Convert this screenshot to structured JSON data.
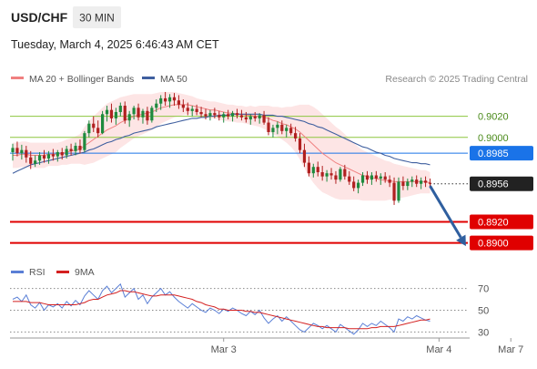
{
  "header": {
    "symbol": "USD/CHF",
    "timeframe": "30 MIN",
    "datetime": "Tuesday, March 4, 2025 6:46:43 AM CET"
  },
  "legend": {
    "ma20_label": "MA 20 + Bollinger Bands",
    "ma50_label": "MA 50",
    "credit": "Research © 2025 Trading Central"
  },
  "rsi_legend": {
    "rsi_label": "RSI",
    "ma_label": "9MA"
  },
  "colors": {
    "up_candle": "#1e8a3e",
    "down_candle": "#b02020",
    "ma20": "#f08080",
    "bollinger_fill": "#fde2e2",
    "ma50": "#3f5f9f",
    "resistance": "#8dc63f",
    "pivot": "#1a73e8",
    "support": "#e00000",
    "rsi": "#5a7fd6",
    "rsi_ma": "#d42020",
    "arrow": "#2f5f9f"
  },
  "chart_data": [
    {
      "type": "candlestick",
      "title": "USD/CHF 30 MIN",
      "ylim": [
        0.8885,
        0.9068
      ],
      "x_ticks": [
        {
          "label": "Mar 3",
          "index": 47
        },
        {
          "label": "Mar 4",
          "index": 95
        },
        {
          "label": "Mar 7",
          "index": 111
        }
      ],
      "candles": [
        [
          0.8986,
          0.8994,
          0.8978,
          0.899
        ],
        [
          0.899,
          0.8996,
          0.8982,
          0.8985
        ],
        [
          0.8985,
          0.8993,
          0.8979,
          0.8988
        ],
        [
          0.8988,
          0.8992,
          0.8976,
          0.8981
        ],
        [
          0.8981,
          0.8987,
          0.897,
          0.8975
        ],
        [
          0.8975,
          0.8983,
          0.8972,
          0.8978
        ],
        [
          0.8978,
          0.8986,
          0.8974,
          0.8983
        ],
        [
          0.8983,
          0.8988,
          0.8976,
          0.898
        ],
        [
          0.898,
          0.8987,
          0.8975,
          0.8984
        ],
        [
          0.8984,
          0.8989,
          0.8978,
          0.8982
        ],
        [
          0.8982,
          0.8988,
          0.8977,
          0.8986
        ],
        [
          0.8986,
          0.899,
          0.8979,
          0.8983
        ],
        [
          0.8983,
          0.8992,
          0.898,
          0.8989
        ],
        [
          0.8989,
          0.8994,
          0.8983,
          0.8987
        ],
        [
          0.8987,
          0.8995,
          0.8983,
          0.8992
        ],
        [
          0.8992,
          0.8998,
          0.8985,
          0.8988
        ],
        [
          0.8988,
          0.9006,
          0.8986,
          0.9004
        ],
        [
          0.9004,
          0.9016,
          0.9,
          0.9013
        ],
        [
          0.9013,
          0.902,
          0.9005,
          0.9009
        ],
        [
          0.9009,
          0.9016,
          0.9,
          0.9004
        ],
        [
          0.9004,
          0.9025,
          0.9003,
          0.9022
        ],
        [
          0.9022,
          0.903,
          0.9015,
          0.9026
        ],
        [
          0.9026,
          0.9032,
          0.9014,
          0.9018
        ],
        [
          0.9018,
          0.9028,
          0.9012,
          0.9024
        ],
        [
          0.9024,
          0.9033,
          0.902,
          0.903
        ],
        [
          0.903,
          0.9034,
          0.9013,
          0.9016
        ],
        [
          0.9016,
          0.9025,
          0.901,
          0.9022
        ],
        [
          0.9022,
          0.903,
          0.9017,
          0.9028
        ],
        [
          0.9028,
          0.9032,
          0.9016,
          0.9019
        ],
        [
          0.9019,
          0.9027,
          0.9013,
          0.9025
        ],
        [
          0.9025,
          0.9029,
          0.9012,
          0.9016
        ],
        [
          0.9016,
          0.903,
          0.9014,
          0.9028
        ],
        [
          0.9028,
          0.9036,
          0.9024,
          0.9032
        ],
        [
          0.9032,
          0.904,
          0.9026,
          0.9037
        ],
        [
          0.9037,
          0.9043,
          0.903,
          0.9034
        ],
        [
          0.9034,
          0.9041,
          0.9028,
          0.9038
        ],
        [
          0.9038,
          0.9042,
          0.903,
          0.9035
        ],
        [
          0.9035,
          0.904,
          0.9027,
          0.9031
        ],
        [
          0.9031,
          0.9036,
          0.9024,
          0.9028
        ],
        [
          0.9028,
          0.9033,
          0.9021,
          0.9025
        ],
        [
          0.9025,
          0.903,
          0.902,
          0.9027
        ],
        [
          0.9027,
          0.9031,
          0.9021,
          0.9024
        ],
        [
          0.9024,
          0.9029,
          0.9019,
          0.9022
        ],
        [
          0.9022,
          0.9027,
          0.9017,
          0.902
        ],
        [
          0.902,
          0.9026,
          0.9016,
          0.9023
        ],
        [
          0.9023,
          0.9028,
          0.9018,
          0.9021
        ],
        [
          0.9021,
          0.9025,
          0.9016,
          0.9019
        ],
        [
          0.9019,
          0.9024,
          0.9014,
          0.9022
        ],
        [
          0.9022,
          0.9026,
          0.9017,
          0.902
        ],
        [
          0.902,
          0.9025,
          0.9015,
          0.9023
        ],
        [
          0.9023,
          0.9027,
          0.9018,
          0.9021
        ],
        [
          0.9021,
          0.9026,
          0.9016,
          0.9019
        ],
        [
          0.9019,
          0.9024,
          0.9014,
          0.9017
        ],
        [
          0.9017,
          0.9022,
          0.9012,
          0.902
        ],
        [
          0.902,
          0.9024,
          0.9015,
          0.9018
        ],
        [
          0.9018,
          0.9023,
          0.9013,
          0.9021
        ],
        [
          0.9021,
          0.9025,
          0.9012,
          0.9014
        ],
        [
          0.9014,
          0.9019,
          0.9002,
          0.9005
        ],
        [
          0.9005,
          0.9012,
          0.9,
          0.9009
        ],
        [
          0.9009,
          0.9015,
          0.9003,
          0.9012
        ],
        [
          0.9012,
          0.9016,
          0.9003,
          0.9006
        ],
        [
          0.9006,
          0.9012,
          0.9,
          0.9009
        ],
        [
          0.9009,
          0.9013,
          0.9002,
          0.9004
        ],
        [
          0.9004,
          0.901,
          0.8996,
          0.8999
        ],
        [
          0.8999,
          0.9004,
          0.8985,
          0.8988
        ],
        [
          0.8988,
          0.8994,
          0.8972,
          0.8976
        ],
        [
          0.8976,
          0.8982,
          0.8963,
          0.8966
        ],
        [
          0.8966,
          0.8975,
          0.8962,
          0.8972
        ],
        [
          0.8972,
          0.8977,
          0.8963,
          0.8967
        ],
        [
          0.8967,
          0.8973,
          0.8959,
          0.8963
        ],
        [
          0.8963,
          0.8969,
          0.8958,
          0.8966
        ],
        [
          0.8966,
          0.8971,
          0.896,
          0.8964
        ],
        [
          0.8964,
          0.8968,
          0.8956,
          0.896
        ],
        [
          0.896,
          0.8972,
          0.8958,
          0.897
        ],
        [
          0.897,
          0.8974,
          0.896,
          0.8963
        ],
        [
          0.8963,
          0.8968,
          0.8955,
          0.8958
        ],
        [
          0.8958,
          0.8963,
          0.8949,
          0.8952
        ],
        [
          0.8952,
          0.896,
          0.8947,
          0.8957
        ],
        [
          0.8957,
          0.8967,
          0.8954,
          0.8964
        ],
        [
          0.8964,
          0.8968,
          0.8956,
          0.896
        ],
        [
          0.896,
          0.8967,
          0.8955,
          0.8964
        ],
        [
          0.8964,
          0.8968,
          0.8958,
          0.8961
        ],
        [
          0.8961,
          0.8966,
          0.8955,
          0.8963
        ],
        [
          0.8963,
          0.8967,
          0.8957,
          0.896
        ],
        [
          0.896,
          0.8964,
          0.8953,
          0.8957
        ],
        [
          0.8957,
          0.8962,
          0.8936,
          0.894
        ],
        [
          0.894,
          0.8962,
          0.8938,
          0.8958
        ],
        [
          0.8958,
          0.8963,
          0.895,
          0.8954
        ],
        [
          0.8954,
          0.8961,
          0.895,
          0.8958
        ],
        [
          0.8958,
          0.8963,
          0.8953,
          0.896
        ],
        [
          0.896,
          0.8964,
          0.8953,
          0.8956
        ],
        [
          0.8956,
          0.8962,
          0.8951,
          0.8959
        ],
        [
          0.8959,
          0.8963,
          0.8953,
          0.8957
        ],
        [
          0.8957,
          0.8961,
          0.8952,
          0.8956
        ]
      ],
      "ma20": [
        0.8983,
        0.8983,
        0.8984,
        0.8984,
        0.8983,
        0.8983,
        0.8983,
        0.8983,
        0.8984,
        0.8984,
        0.8984,
        0.8985,
        0.8986,
        0.8987,
        0.8988,
        0.8989,
        0.8992,
        0.8995,
        0.8998,
        0.9001,
        0.9004,
        0.9007,
        0.9009,
        0.9011,
        0.9014,
        0.9016,
        0.9018,
        0.902,
        0.9021,
        0.9022,
        0.9023,
        0.9024,
        0.9026,
        0.9028,
        0.9029,
        0.903,
        0.9031,
        0.9031,
        0.9031,
        0.9031,
        0.903,
        0.9029,
        0.9028,
        0.9027,
        0.9026,
        0.9026,
        0.9025,
        0.9024,
        0.9023,
        0.9023,
        0.9022,
        0.9022,
        0.9021,
        0.9021,
        0.902,
        0.902,
        0.9019,
        0.9018,
        0.9016,
        0.9015,
        0.9013,
        0.9012,
        0.901,
        0.9008,
        0.9005,
        0.9001,
        0.8997,
        0.8993,
        0.8989,
        0.8985,
        0.8982,
        0.8979,
        0.8976,
        0.8974,
        0.8972,
        0.897,
        0.8968,
        0.8966,
        0.8964,
        0.8963,
        0.8962,
        0.8961,
        0.896,
        0.8959,
        0.8959,
        0.8958,
        0.8958,
        0.8958,
        0.8958,
        0.8958,
        0.8958,
        0.8958,
        0.8958,
        0.8957
      ],
      "bb_width": [
        0.0012,
        0.0012,
        0.0012,
        0.0012,
        0.0012,
        0.0012,
        0.0012,
        0.0012,
        0.0011,
        0.0011,
        0.0011,
        0.0011,
        0.0012,
        0.0012,
        0.0013,
        0.0014,
        0.0018,
        0.002,
        0.0022,
        0.0023,
        0.0024,
        0.0025,
        0.0025,
        0.0025,
        0.0024,
        0.0023,
        0.0022,
        0.0021,
        0.002,
        0.0019,
        0.0018,
        0.0017,
        0.0016,
        0.0015,
        0.0014,
        0.0013,
        0.0012,
        0.0011,
        0.001,
        0.0009,
        0.0009,
        0.0008,
        0.0008,
        0.0008,
        0.0008,
        0.0008,
        0.0008,
        0.0008,
        0.0008,
        0.0008,
        0.0008,
        0.0008,
        0.0008,
        0.0009,
        0.0009,
        0.001,
        0.0011,
        0.0012,
        0.0013,
        0.0014,
        0.0015,
        0.0017,
        0.0019,
        0.0022,
        0.0026,
        0.003,
        0.0034,
        0.0036,
        0.0037,
        0.0037,
        0.0036,
        0.0035,
        0.0034,
        0.0033,
        0.0031,
        0.0029,
        0.0027,
        0.0025,
        0.0024,
        0.0023,
        0.0022,
        0.0021,
        0.002,
        0.0019,
        0.0018,
        0.0017,
        0.0016,
        0.0015,
        0.0014,
        0.0013,
        0.0012,
        0.0011,
        0.0011,
        0.001
      ],
      "ma50": [
        0.8966,
        0.8968,
        0.897,
        0.8972,
        0.8974,
        0.8975,
        0.8976,
        0.8977,
        0.8978,
        0.8979,
        0.898,
        0.8981,
        0.8982,
        0.8983,
        0.8984,
        0.8985,
        0.8986,
        0.8988,
        0.8989,
        0.8991,
        0.8993,
        0.8995,
        0.8996,
        0.8998,
        0.8999,
        0.9001,
        0.9002,
        0.9004,
        0.9005,
        0.9006,
        0.9007,
        0.9008,
        0.901,
        0.9011,
        0.9012,
        0.9013,
        0.9014,
        0.9015,
        0.9016,
        0.9017,
        0.9018,
        0.9018,
        0.9019,
        0.9019,
        0.902,
        0.902,
        0.9021,
        0.9021,
        0.9021,
        0.9022,
        0.9022,
        0.9022,
        0.9022,
        0.9022,
        0.9022,
        0.9022,
        0.9021,
        0.9021,
        0.9021,
        0.902,
        0.902,
        0.9019,
        0.9018,
        0.9017,
        0.9016,
        0.9015,
        0.9013,
        0.9012,
        0.901,
        0.9009,
        0.9007,
        0.9005,
        0.9003,
        0.9001,
        0.8999,
        0.8997,
        0.8995,
        0.8993,
        0.8991,
        0.899,
        0.8988,
        0.8986,
        0.8985,
        0.8983,
        0.8982,
        0.898,
        0.8979,
        0.8978,
        0.8977,
        0.8976,
        0.8976,
        0.8975,
        0.8975,
        0.8974
      ],
      "levels": [
        {
          "value": 0.902,
          "label": "0.9020",
          "kind": "resistance"
        },
        {
          "value": 0.9,
          "label": "0.9000",
          "kind": "resistance"
        },
        {
          "value": 0.8985,
          "label": "0.8985",
          "kind": "pivot"
        },
        {
          "value": 0.8956,
          "label": "0.8956",
          "kind": "last"
        },
        {
          "value": 0.892,
          "label": "0.8920",
          "kind": "support"
        },
        {
          "value": 0.89,
          "label": "0.8900",
          "kind": "support"
        }
      ],
      "projection": {
        "from": {
          "index": 93,
          "value": 0.8954
        },
        "to": {
          "index": 101,
          "value": 0.8897
        }
      }
    },
    {
      "type": "line",
      "title": "RSI",
      "ylim": [
        22,
        78
      ],
      "y_ticks": [
        70,
        50,
        30
      ],
      "series": [
        {
          "name": "RSI",
          "values": [
            60,
            62,
            58,
            64,
            55,
            52,
            57,
            50,
            55,
            53,
            56,
            52,
            58,
            54,
            59,
            55,
            63,
            68,
            64,
            60,
            68,
            72,
            66,
            70,
            74,
            62,
            66,
            70,
            60,
            64,
            56,
            62,
            66,
            70,
            64,
            67,
            62,
            58,
            55,
            52,
            56,
            53,
            50,
            48,
            52,
            50,
            47,
            51,
            49,
            52,
            50,
            47,
            45,
            49,
            46,
            50,
            43,
            38,
            42,
            45,
            40,
            44,
            40,
            36,
            32,
            30,
            34,
            38,
            36,
            33,
            36,
            33,
            30,
            37,
            34,
            31,
            28,
            32,
            38,
            35,
            38,
            36,
            40,
            37,
            34,
            30,
            42,
            40,
            44,
            42,
            45,
            43,
            41,
            40
          ]
        },
        {
          "name": "9MA",
          "values": [
            58,
            58,
            58,
            58,
            57,
            57,
            57,
            56,
            55,
            55,
            55,
            55,
            55,
            55,
            55,
            56,
            57,
            59,
            60,
            60,
            62,
            64,
            65,
            66,
            68,
            68,
            67,
            67,
            66,
            65,
            64,
            63,
            63,
            64,
            64,
            64,
            64,
            63,
            62,
            61,
            60,
            58,
            57,
            55,
            54,
            53,
            51,
            51,
            50,
            50,
            50,
            50,
            49,
            49,
            48,
            48,
            47,
            46,
            45,
            44,
            43,
            42,
            41,
            40,
            39,
            38,
            37,
            36,
            35,
            35,
            34,
            34,
            34,
            34,
            34,
            33,
            33,
            33,
            33,
            33,
            34,
            34,
            35,
            35,
            35,
            35,
            36,
            37,
            38,
            39,
            40,
            41,
            41,
            42
          ]
        }
      ]
    }
  ]
}
